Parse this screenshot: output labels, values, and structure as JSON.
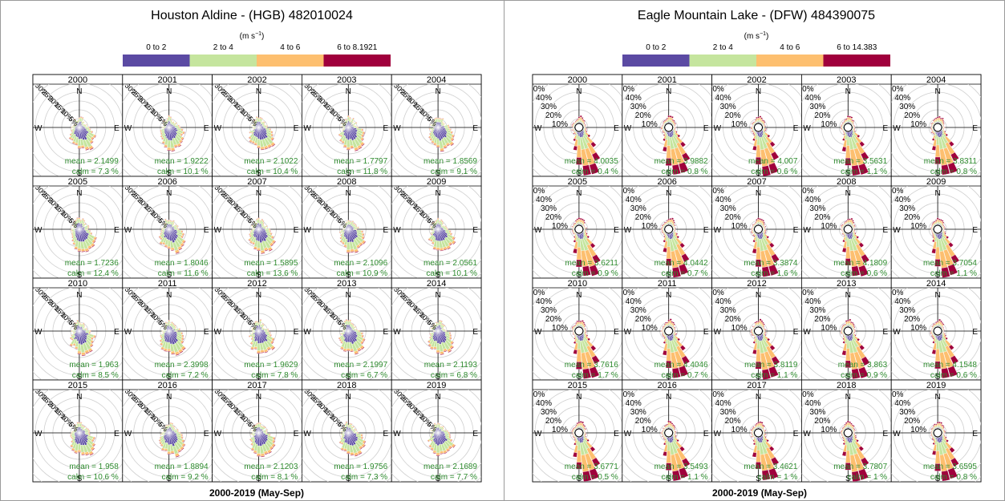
{
  "chart_data": [
    {
      "type": "windrose",
      "title": "Houston Aldine - (HGB) 482010024",
      "unit": "(m s",
      "unit_exp": "−1",
      "unit_close": ")",
      "legend": [
        "0 to 2",
        "2 to 4",
        "4 to 6",
        "6 to 8.1921"
      ],
      "colors": [
        "#5b4aa3",
        "#c5e59e",
        "#fdbf6f",
        "#a0003c"
      ],
      "xlabel": "2000-2019 (May-Sep)",
      "compass": [
        "N",
        "E",
        "S",
        "W"
      ],
      "rings": [
        "5%",
        "10%",
        "15%",
        "20%",
        "25%",
        "30%"
      ],
      "mean_prefix": "mean = ",
      "calm_prefix": "calm = ",
      "panels": [
        {
          "year": "2000",
          "mean": "2.1499",
          "calm": "7.3 %"
        },
        {
          "year": "2001",
          "mean": "1.9222",
          "calm": "10.1 %"
        },
        {
          "year": "2002",
          "mean": "2.1022",
          "calm": "10.4 %"
        },
        {
          "year": "2003",
          "mean": "1.7797",
          "calm": "11.8 %"
        },
        {
          "year": "2004",
          "mean": "1.8569",
          "calm": "9.1 %"
        },
        {
          "year": "2005",
          "mean": "1.7236",
          "calm": "12.4 %"
        },
        {
          "year": "2006",
          "mean": "1.8046",
          "calm": "11.6 %"
        },
        {
          "year": "2007",
          "mean": "1.5895",
          "calm": "13.6 %"
        },
        {
          "year": "2008",
          "mean": "2.1096",
          "calm": "10.9 %"
        },
        {
          "year": "2009",
          "mean": "2.0561",
          "calm": "10.1 %"
        },
        {
          "year": "2010",
          "mean": "1.963",
          "calm": "8.5 %"
        },
        {
          "year": "2011",
          "mean": "2.3998",
          "calm": "7.2 %"
        },
        {
          "year": "2012",
          "mean": "1.9629",
          "calm": "7.8 %"
        },
        {
          "year": "2013",
          "mean": "2.1997",
          "calm": "6.7 %"
        },
        {
          "year": "2014",
          "mean": "2.1193",
          "calm": "6.8 %"
        },
        {
          "year": "2015",
          "mean": "1.958",
          "calm": "10.6 %"
        },
        {
          "year": "2016",
          "mean": "1.8894",
          "calm": "9.2 %"
        },
        {
          "year": "2017",
          "mean": "2.1203",
          "calm": "8.1 %"
        },
        {
          "year": "2018",
          "mean": "1.9756",
          "calm": "7.3 %"
        },
        {
          "year": "2019",
          "mean": "2.1689",
          "calm": "7.7 %"
        }
      ]
    },
    {
      "type": "windrose",
      "title": "Eagle Mountain Lake - (DFW) 484390075",
      "unit": "(m s",
      "unit_exp": "−1",
      "unit_close": ")",
      "legend": [
        "0 to 2",
        "2 to 4",
        "4 to 6",
        "6 to 14.383"
      ],
      "colors": [
        "#5b4aa3",
        "#c5e59e",
        "#fdbf6f",
        "#a0003c"
      ],
      "xlabel": "2000-2019 (May-Sep)",
      "compass": [
        "N",
        "E",
        "S",
        "W"
      ],
      "rings": [
        "0%",
        "10%",
        "20%",
        "30%",
        "40%"
      ],
      "mean_prefix": "mean = ",
      "calm_prefix": "calm = ",
      "panels": [
        {
          "year": "2000",
          "mean": "4.0035",
          "calm": "0.4 %"
        },
        {
          "year": "2001",
          "mean": "3.9882",
          "calm": "0.8 %"
        },
        {
          "year": "2002",
          "mean": "4.007",
          "calm": "0.6 %"
        },
        {
          "year": "2003",
          "mean": "3.5631",
          "calm": "1.1 %"
        },
        {
          "year": "2004",
          "mean": "3.8311",
          "calm": "0.8 %"
        },
        {
          "year": "2005",
          "mean": "3.6211",
          "calm": "0.9 %"
        },
        {
          "year": "2006",
          "mean": "4.0442",
          "calm": "0.7 %"
        },
        {
          "year": "2007",
          "mean": "3.3874",
          "calm": "1.6 %"
        },
        {
          "year": "2008",
          "mean": "4.1809",
          "calm": "0.6 %"
        },
        {
          "year": "2009",
          "mean": "3.7054",
          "calm": "1.1 %"
        },
        {
          "year": "2010",
          "mean": "3.7616",
          "calm": "1.7 %"
        },
        {
          "year": "2011",
          "mean": "4.4046",
          "calm": "0.7 %"
        },
        {
          "year": "2012",
          "mean": "3.8119",
          "calm": "1.1 %"
        },
        {
          "year": "2013",
          "mean": "3.863",
          "calm": "0.9 %"
        },
        {
          "year": "2014",
          "mean": "4.1548",
          "calm": "0.6 %"
        },
        {
          "year": "2015",
          "mean": "3.6771",
          "calm": "0.5 %"
        },
        {
          "year": "2016",
          "mean": "3.5493",
          "calm": "1.1 %"
        },
        {
          "year": "2017",
          "mean": "3.4621",
          "calm": "1 %"
        },
        {
          "year": "2018",
          "mean": "3.7807",
          "calm": "1 %"
        },
        {
          "year": "2019",
          "mean": "3.6595",
          "calm": "0.8 %"
        }
      ]
    }
  ]
}
